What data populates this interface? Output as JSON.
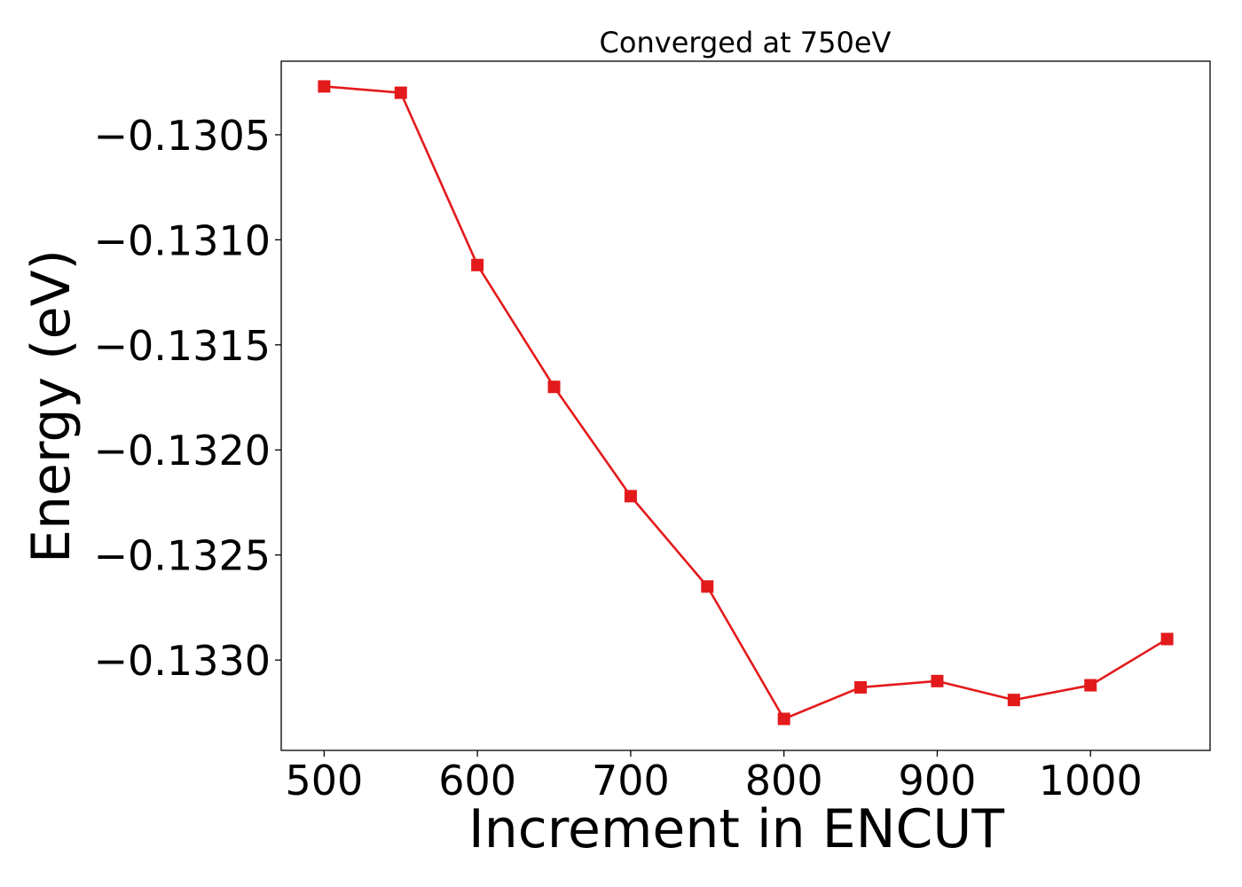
{
  "chart_data": {
    "type": "line",
    "title": "Converged at 750eV",
    "xlabel": "Increment in ENCUT",
    "ylabel": "Energy (eV)",
    "x": [
      500,
      550,
      600,
      650,
      700,
      750,
      800,
      850,
      900,
      950,
      1000,
      1050
    ],
    "series": [
      {
        "values": [
          -0.13027,
          -0.1303,
          -0.13112,
          -0.1317,
          -0.13222,
          -0.13265,
          -0.13328,
          -0.13313,
          -0.1331,
          -0.13319,
          -0.13312,
          -0.1329
        ],
        "color": "#e31a1c",
        "marker": "square"
      }
    ],
    "xlim": [
      472,
      1078
    ],
    "ylim": [
      -0.13343,
      -0.13015
    ],
    "xticks": [
      500,
      600,
      700,
      800,
      900,
      1000
    ],
    "xtick_labels": [
      "500",
      "600",
      "700",
      "800",
      "900",
      "1000"
    ],
    "yticks": [
      -0.1305,
      -0.131,
      -0.1315,
      -0.132,
      -0.1325,
      -0.133
    ],
    "ytick_labels": [
      "−0.1305",
      "−0.1310",
      "−0.1315",
      "−0.1320",
      "−0.1325",
      "−0.1330"
    ],
    "grid": false,
    "legend": "none"
  }
}
